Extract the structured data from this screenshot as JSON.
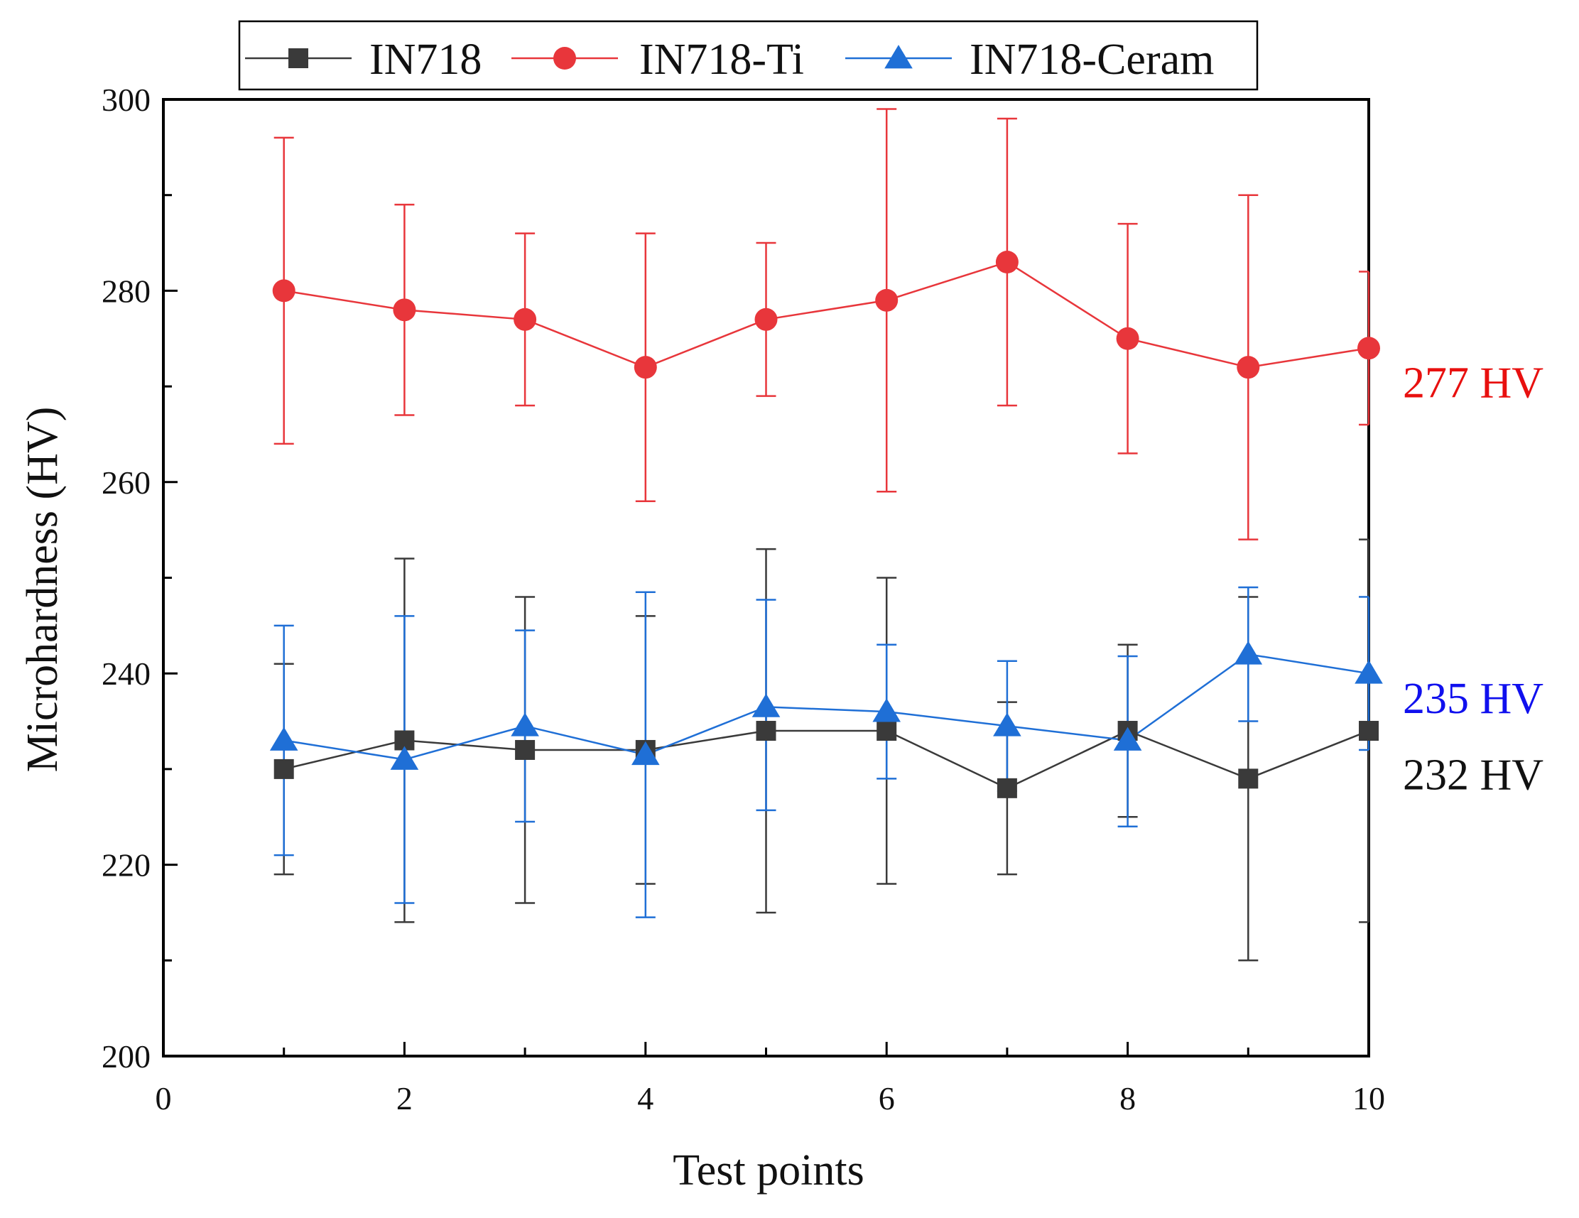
{
  "chart_data": {
    "type": "line",
    "title": "",
    "xlabel": "Test points",
    "ylabel": "Microhardness (HV)",
    "xlim": [
      0,
      10
    ],
    "ylim": [
      200,
      300
    ],
    "xticks": [
      0,
      2,
      4,
      6,
      8,
      10
    ],
    "yticks": [
      200,
      220,
      240,
      260,
      280,
      300
    ],
    "x": [
      1,
      2,
      3,
      4,
      5,
      6,
      7,
      8,
      9,
      10
    ],
    "legend_position": "top-center",
    "series": [
      {
        "name": "IN718",
        "marker": "square",
        "color": "#3a3a3a",
        "values": [
          230,
          233,
          232,
          232,
          234,
          234,
          228,
          234,
          229,
          234
        ],
        "err_low": [
          219,
          214,
          216,
          218,
          215,
          218,
          219,
          225,
          210,
          214
        ],
        "err_high": [
          241,
          252,
          248,
          246,
          253,
          250,
          237,
          243,
          248,
          254
        ]
      },
      {
        "name": "IN718-Ti",
        "marker": "circle",
        "color": "#e8363b",
        "values": [
          280,
          278,
          277,
          272,
          277,
          279,
          283,
          275,
          272,
          274
        ],
        "err_low": [
          264,
          267,
          268,
          258,
          269,
          259,
          268,
          263,
          254,
          266
        ],
        "err_high": [
          296,
          289,
          286,
          286,
          285,
          299,
          298,
          287,
          290,
          282
        ]
      },
      {
        "name": "IN718-Ceram",
        "marker": "triangle",
        "color": "#1f6fd6",
        "values": [
          233,
          231,
          234.5,
          231.5,
          236.5,
          236,
          234.5,
          233,
          242,
          240
        ],
        "err_low": [
          221,
          216,
          224.5,
          214.5,
          225.7,
          229,
          227.7,
          224,
          235,
          232
        ],
        "err_high": [
          245,
          246,
          244.5,
          248.5,
          247.7,
          243,
          241.3,
          241.8,
          249,
          248
        ]
      }
    ],
    "annotations": [
      {
        "text": "277 HV",
        "color": "#e8100f",
        "y": 270.5
      },
      {
        "text": "235 HV",
        "color": "#1010ee",
        "y": 237.5
      },
      {
        "text": "232 HV",
        "color": "#111111",
        "y": 229.5
      }
    ]
  }
}
